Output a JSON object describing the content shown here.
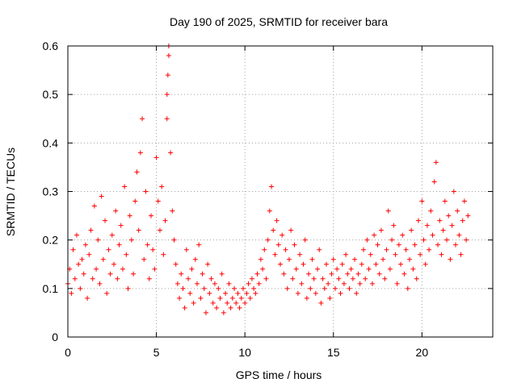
{
  "chart_data": {
    "type": "scatter",
    "title": "Day 190 of 2025, SRMTID for receiver bara",
    "xlabel": "GPS time / hours",
    "ylabel": "SRMTID / TECUs",
    "xlim": [
      0,
      24
    ],
    "ylim": [
      0,
      0.6
    ],
    "x_ticks": [
      0,
      5,
      10,
      15,
      20
    ],
    "y_ticks": [
      0,
      0.1,
      0.2,
      0.3,
      0.4,
      0.5,
      0.6
    ],
    "x_tick_labels": [
      "0",
      "5",
      "10",
      "15",
      "20"
    ],
    "y_tick_labels": [
      "0",
      "0.1",
      "0.2",
      "0.3",
      "0.4",
      "0.5",
      "0.6"
    ],
    "grid": true,
    "marker": "+",
    "marker_color": "#ff0000",
    "series": [
      {
        "name": "SRMTID",
        "points": [
          [
            0.0,
            0.11
          ],
          [
            0.1,
            0.14
          ],
          [
            0.2,
            0.09
          ],
          [
            0.3,
            0.18
          ],
          [
            0.4,
            0.12
          ],
          [
            0.5,
            0.21
          ],
          [
            0.6,
            0.15
          ],
          [
            0.7,
            0.1
          ],
          [
            0.8,
            0.16
          ],
          [
            0.9,
            0.13
          ],
          [
            1.0,
            0.19
          ],
          [
            1.1,
            0.08
          ],
          [
            1.2,
            0.17
          ],
          [
            1.3,
            0.22
          ],
          [
            1.4,
            0.12
          ],
          [
            1.5,
            0.27
          ],
          [
            1.6,
            0.14
          ],
          [
            1.7,
            0.2
          ],
          [
            1.8,
            0.11
          ],
          [
            1.9,
            0.29
          ],
          [
            2.0,
            0.16
          ],
          [
            2.1,
            0.24
          ],
          [
            2.2,
            0.09
          ],
          [
            2.3,
            0.18
          ],
          [
            2.4,
            0.13
          ],
          [
            2.5,
            0.21
          ],
          [
            2.6,
            0.15
          ],
          [
            2.7,
            0.26
          ],
          [
            2.8,
            0.12
          ],
          [
            2.9,
            0.19
          ],
          [
            3.0,
            0.23
          ],
          [
            3.1,
            0.14
          ],
          [
            3.2,
            0.31
          ],
          [
            3.3,
            0.17
          ],
          [
            3.4,
            0.1
          ],
          [
            3.5,
            0.25
          ],
          [
            3.6,
            0.2
          ],
          [
            3.7,
            0.13
          ],
          [
            3.8,
            0.28
          ],
          [
            3.9,
            0.34
          ],
          [
            4.0,
            0.22
          ],
          [
            4.1,
            0.38
          ],
          [
            4.2,
            0.45
          ],
          [
            4.3,
            0.16
          ],
          [
            4.4,
            0.3
          ],
          [
            4.5,
            0.19
          ],
          [
            4.6,
            0.12
          ],
          [
            4.7,
            0.25
          ],
          [
            4.8,
            0.18
          ],
          [
            4.9,
            0.14
          ],
          [
            5.0,
            0.37
          ],
          [
            5.1,
            0.28
          ],
          [
            5.2,
            0.22
          ],
          [
            5.3,
            0.31
          ],
          [
            5.4,
            0.17
          ],
          [
            5.5,
            0.24
          ],
          [
            5.6,
            0.45
          ],
          [
            5.6,
            0.5
          ],
          [
            5.65,
            0.54
          ],
          [
            5.7,
            0.6
          ],
          [
            5.7,
            0.58
          ],
          [
            5.8,
            0.38
          ],
          [
            5.9,
            0.26
          ],
          [
            6.0,
            0.2
          ],
          [
            6.1,
            0.15
          ],
          [
            6.2,
            0.11
          ],
          [
            6.3,
            0.08
          ],
          [
            6.4,
            0.13
          ],
          [
            6.5,
            0.1
          ],
          [
            6.6,
            0.06
          ],
          [
            6.7,
            0.18
          ],
          [
            6.8,
            0.12
          ],
          [
            6.9,
            0.09
          ],
          [
            7.0,
            0.14
          ],
          [
            7.1,
            0.07
          ],
          [
            7.2,
            0.16
          ],
          [
            7.3,
            0.11
          ],
          [
            7.4,
            0.19
          ],
          [
            7.5,
            0.08
          ],
          [
            7.6,
            0.13
          ],
          [
            7.7,
            0.1
          ],
          [
            7.8,
            0.05
          ],
          [
            7.9,
            0.15
          ],
          [
            8.0,
            0.09
          ],
          [
            8.1,
            0.12
          ],
          [
            8.2,
            0.07
          ],
          [
            8.3,
            0.11
          ],
          [
            8.4,
            0.06
          ],
          [
            8.5,
            0.1
          ],
          [
            8.6,
            0.08
          ],
          [
            8.7,
            0.13
          ],
          [
            8.8,
            0.05
          ],
          [
            8.9,
            0.09
          ],
          [
            9.0,
            0.07
          ],
          [
            9.1,
            0.11
          ],
          [
            9.2,
            0.06
          ],
          [
            9.3,
            0.08
          ],
          [
            9.4,
            0.1
          ],
          [
            9.5,
            0.07
          ],
          [
            9.6,
            0.09
          ],
          [
            9.7,
            0.06
          ],
          [
            9.8,
            0.08
          ],
          [
            9.9,
            0.1
          ],
          [
            10.0,
            0.07
          ],
          [
            10.1,
            0.09
          ],
          [
            10.2,
            0.11
          ],
          [
            10.3,
            0.08
          ],
          [
            10.4,
            0.12
          ],
          [
            10.5,
            0.1
          ],
          [
            10.6,
            0.09
          ],
          [
            10.7,
            0.13
          ],
          [
            10.8,
            0.11
          ],
          [
            10.9,
            0.16
          ],
          [
            11.0,
            0.14
          ],
          [
            11.1,
            0.18
          ],
          [
            11.2,
            0.12
          ],
          [
            11.3,
            0.2
          ],
          [
            11.4,
            0.26
          ],
          [
            11.5,
            0.31
          ],
          [
            11.6,
            0.22
          ],
          [
            11.7,
            0.17
          ],
          [
            11.8,
            0.24
          ],
          [
            11.9,
            0.19
          ],
          [
            12.0,
            0.15
          ],
          [
            12.1,
            0.21
          ],
          [
            12.2,
            0.13
          ],
          [
            12.3,
            0.18
          ],
          [
            12.4,
            0.1
          ],
          [
            12.5,
            0.16
          ],
          [
            12.6,
            0.22
          ],
          [
            12.7,
            0.12
          ],
          [
            12.8,
            0.19
          ],
          [
            12.9,
            0.14
          ],
          [
            13.0,
            0.09
          ],
          [
            13.1,
            0.17
          ],
          [
            13.2,
            0.11
          ],
          [
            13.3,
            0.15
          ],
          [
            13.4,
            0.2
          ],
          [
            13.5,
            0.08
          ],
          [
            13.6,
            0.13
          ],
          [
            13.7,
            0.1
          ],
          [
            13.8,
            0.16
          ],
          [
            13.9,
            0.12
          ],
          [
            14.0,
            0.09
          ],
          [
            14.1,
            0.14
          ],
          [
            14.2,
            0.18
          ],
          [
            14.3,
            0.07
          ],
          [
            14.4,
            0.12
          ],
          [
            14.5,
            0.1
          ],
          [
            14.6,
            0.15
          ],
          [
            14.7,
            0.11
          ],
          [
            14.8,
            0.08
          ],
          [
            14.9,
            0.13
          ],
          [
            15.0,
            0.16
          ],
          [
            15.1,
            0.1
          ],
          [
            15.2,
            0.14
          ],
          [
            15.3,
            0.12
          ],
          [
            15.4,
            0.09
          ],
          [
            15.5,
            0.15
          ],
          [
            15.6,
            0.11
          ],
          [
            15.7,
            0.17
          ],
          [
            15.8,
            0.13
          ],
          [
            15.9,
            0.1
          ],
          [
            16.0,
            0.14
          ],
          [
            16.1,
            0.12
          ],
          [
            16.2,
            0.16
          ],
          [
            16.3,
            0.09
          ],
          [
            16.4,
            0.13
          ],
          [
            16.5,
            0.11
          ],
          [
            16.6,
            0.15
          ],
          [
            16.7,
            0.18
          ],
          [
            16.8,
            0.12
          ],
          [
            16.9,
            0.2
          ],
          [
            17.0,
            0.14
          ],
          [
            17.1,
            0.17
          ],
          [
            17.2,
            0.11
          ],
          [
            17.3,
            0.21
          ],
          [
            17.4,
            0.15
          ],
          [
            17.5,
            0.19
          ],
          [
            17.6,
            0.13
          ],
          [
            17.7,
            0.22
          ],
          [
            17.8,
            0.16
          ],
          [
            17.9,
            0.12
          ],
          [
            18.0,
            0.18
          ],
          [
            18.1,
            0.26
          ],
          [
            18.2,
            0.14
          ],
          [
            18.3,
            0.2
          ],
          [
            18.4,
            0.23
          ],
          [
            18.5,
            0.17
          ],
          [
            18.6,
            0.11
          ],
          [
            18.7,
            0.19
          ],
          [
            18.8,
            0.15
          ],
          [
            18.9,
            0.21
          ],
          [
            19.0,
            0.13
          ],
          [
            19.1,
            0.18
          ],
          [
            19.2,
            0.1
          ],
          [
            19.3,
            0.16
          ],
          [
            19.4,
            0.22
          ],
          [
            19.5,
            0.14
          ],
          [
            19.6,
            0.19
          ],
          [
            19.7,
            0.12
          ],
          [
            19.8,
            0.24
          ],
          [
            19.9,
            0.17
          ],
          [
            20.0,
            0.28
          ],
          [
            20.1,
            0.2
          ],
          [
            20.2,
            0.15
          ],
          [
            20.3,
            0.23
          ],
          [
            20.4,
            0.18
          ],
          [
            20.5,
            0.26
          ],
          [
            20.6,
            0.21
          ],
          [
            20.7,
            0.32
          ],
          [
            20.8,
            0.36
          ],
          [
            20.9,
            0.19
          ],
          [
            21.0,
            0.24
          ],
          [
            21.1,
            0.17
          ],
          [
            21.2,
            0.22
          ],
          [
            21.3,
            0.28
          ],
          [
            21.4,
            0.2
          ],
          [
            21.5,
            0.25
          ],
          [
            21.6,
            0.16
          ],
          [
            21.7,
            0.23
          ],
          [
            21.8,
            0.3
          ],
          [
            21.9,
            0.19
          ],
          [
            22.0,
            0.26
          ],
          [
            22.1,
            0.21
          ],
          [
            22.2,
            0.17
          ],
          [
            22.3,
            0.24
          ],
          [
            22.4,
            0.28
          ],
          [
            22.5,
            0.2
          ],
          [
            22.6,
            0.25
          ]
        ]
      }
    ]
  }
}
